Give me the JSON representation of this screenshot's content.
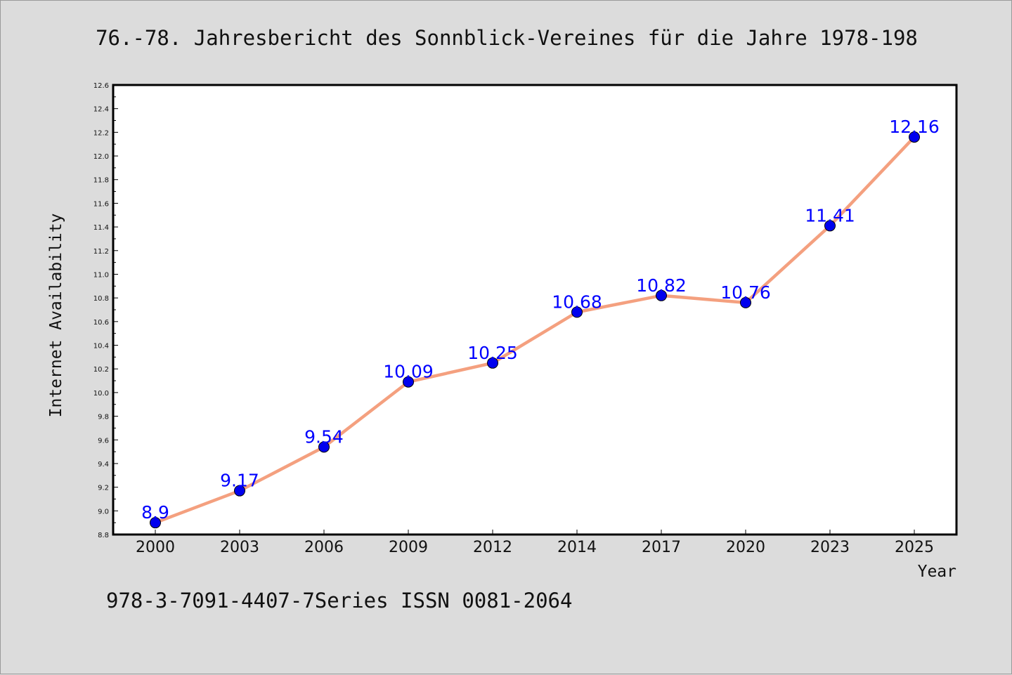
{
  "title": "76.-78. Jahresbericht des Sonnblick-Vereines für die Jahre 1978-198",
  "footer": "978-3-7091-4407-7Series ISSN 0081-2064",
  "colors": {
    "background": "#dcdcdc",
    "plot_background": "#ffffff",
    "line": "#f4a07f",
    "marker": "#0000ee",
    "data_label": "#0000ff"
  },
  "chart_data": {
    "type": "line",
    "title": "76.-78. Jahresbericht des Sonnblick-Vereines für die Jahre 1978-198",
    "xlabel": "Year",
    "ylabel": "Internet Availability",
    "categories": [
      "2000",
      "2003",
      "2006",
      "2009",
      "2012",
      "2014",
      "2017",
      "2020",
      "2023",
      "2025"
    ],
    "series": [
      {
        "values": [
          8.9,
          9.17,
          9.54,
          10.09,
          10.25,
          10.68,
          10.82,
          10.76,
          11.41,
          12.16
        ],
        "labels": [
          "8.9",
          "9.17",
          "9.54",
          "10.09",
          "10.25",
          "10.68",
          "10.82",
          "10.76",
          "11.41",
          "12.16"
        ]
      }
    ],
    "ylim": [
      8.8,
      12.6
    ],
    "yticks": [
      "8.8",
      "9.0",
      "9.2",
      "9.4",
      "9.6",
      "9.8",
      "10.0",
      "10.2",
      "10.4",
      "10.6",
      "10.8",
      "11.0",
      "11.2",
      "11.4",
      "11.6",
      "11.8",
      "12.0",
      "12.2",
      "12.4",
      "12.6"
    ],
    "grid": false,
    "legend": "none"
  }
}
